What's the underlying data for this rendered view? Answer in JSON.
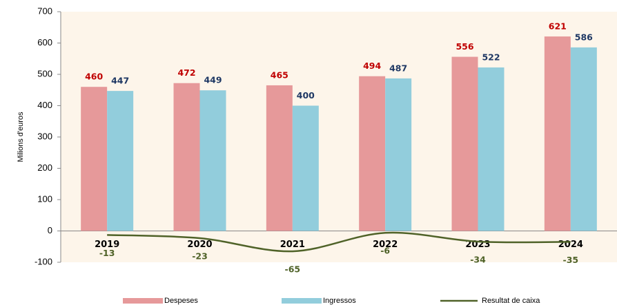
{
  "chart_data": {
    "type": "bar_line",
    "y_axis_label": "Milions d'euros",
    "categories": [
      "2019",
      "2020",
      "2021",
      "2022",
      "2023",
      "2024"
    ],
    "series": [
      {
        "name": "Despeses",
        "type": "bar",
        "color": "#e6999a",
        "label_color": "#c00000",
        "values": [
          460,
          472,
          465,
          494,
          556,
          621
        ]
      },
      {
        "name": "Ingressos",
        "type": "bar",
        "color": "#92cddc",
        "label_color": "#1f3864",
        "values": [
          447,
          449,
          400,
          487,
          522,
          586
        ]
      },
      {
        "name": "Resultat de caixa",
        "type": "line",
        "color": "#4f6228",
        "label_color": "#4f6228",
        "values": [
          -13,
          -23,
          -65,
          -6,
          -34,
          -35
        ]
      }
    ],
    "ylim": [
      -100,
      700
    ],
    "yticks": [
      -100,
      0,
      100,
      200,
      300,
      400,
      500,
      600,
      700
    ],
    "grid": false,
    "background": "#fdf5ea",
    "legend": "bottom"
  }
}
